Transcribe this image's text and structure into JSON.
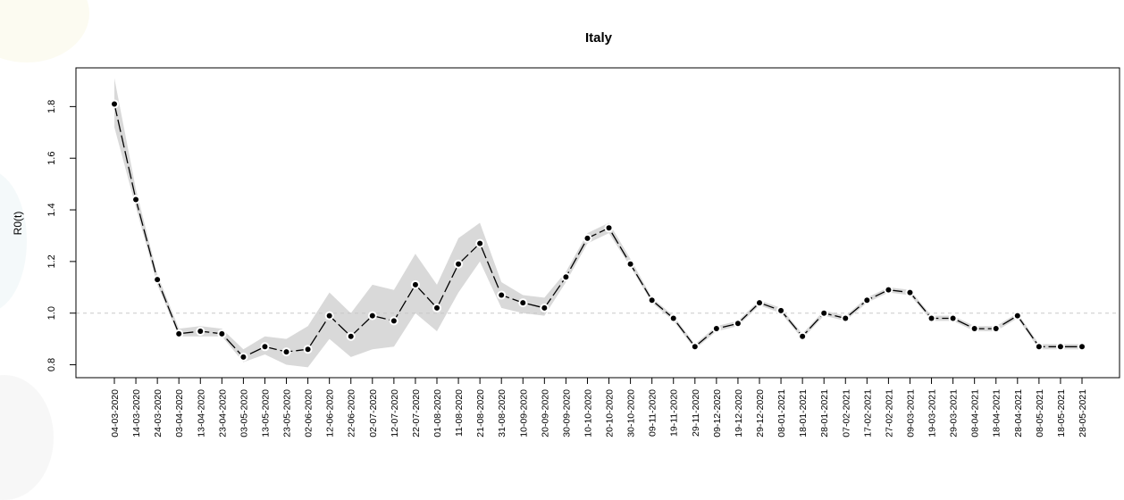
{
  "chart_data": {
    "type": "line",
    "title": "Italy",
    "xlabel": "",
    "ylabel": "R0(t)",
    "ylim": [
      0.75,
      1.95
    ],
    "yticks": [
      0.8,
      1.0,
      1.2,
      1.4,
      1.6,
      1.8
    ],
    "reference_line": 1.0,
    "grid": false,
    "colors": {
      "line": "#000000",
      "band": "#d9d9d9",
      "reference": "#c8c8c8"
    },
    "categories": [
      "04-03-2020",
      "14-03-2020",
      "24-03-2020",
      "03-04-2020",
      "13-04-2020",
      "23-04-2020",
      "03-05-2020",
      "13-05-2020",
      "23-05-2020",
      "02-06-2020",
      "12-06-2020",
      "22-06-2020",
      "02-07-2020",
      "12-07-2020",
      "22-07-2020",
      "01-08-2020",
      "11-08-2020",
      "21-08-2020",
      "31-08-2020",
      "10-09-2020",
      "20-09-2020",
      "30-09-2020",
      "10-10-2020",
      "20-10-2020",
      "30-10-2020",
      "09-11-2020",
      "19-11-2020",
      "29-11-2020",
      "09-12-2020",
      "19-12-2020",
      "29-12-2020",
      "08-01-2021",
      "18-01-2021",
      "28-01-2021",
      "07-02-2021",
      "17-02-2021",
      "27-02-2021",
      "09-03-2021",
      "19-03-2021",
      "29-03-2021",
      "08-04-2021",
      "18-04-2021",
      "28-04-2021",
      "08-05-2021",
      "18-05-2021",
      "28-05-2021"
    ],
    "values": [
      1.81,
      1.44,
      1.13,
      0.92,
      0.93,
      0.92,
      0.83,
      0.87,
      0.85,
      0.86,
      0.99,
      0.91,
      0.99,
      0.97,
      1.11,
      1.02,
      1.19,
      1.27,
      1.07,
      1.04,
      1.02,
      1.14,
      1.29,
      1.33,
      1.19,
      1.05,
      0.98,
      0.87,
      0.94,
      0.96,
      1.04,
      1.01,
      0.91,
      1.0,
      0.98,
      1.05,
      1.09,
      1.08,
      0.98,
      0.98,
      0.94,
      0.94,
      0.99,
      0.87,
      0.87,
      0.87
    ],
    "lower": [
      1.72,
      1.41,
      1.11,
      0.91,
      0.91,
      0.91,
      0.81,
      0.84,
      0.8,
      0.79,
      0.9,
      0.83,
      0.86,
      0.87,
      1.0,
      0.93,
      1.08,
      1.2,
      1.02,
      1.0,
      0.99,
      1.12,
      1.27,
      1.31,
      1.18,
      1.04,
      0.97,
      0.86,
      0.93,
      0.95,
      1.03,
      1.0,
      0.9,
      0.99,
      0.97,
      1.04,
      1.08,
      1.07,
      0.97,
      0.97,
      0.93,
      0.93,
      0.98,
      0.86,
      0.86,
      0.86
    ],
    "upper": [
      1.91,
      1.48,
      1.15,
      0.94,
      0.95,
      0.94,
      0.86,
      0.91,
      0.9,
      0.95,
      1.08,
      1.0,
      1.11,
      1.09,
      1.23,
      1.11,
      1.29,
      1.35,
      1.12,
      1.07,
      1.06,
      1.16,
      1.31,
      1.35,
      1.21,
      1.06,
      0.99,
      0.88,
      0.95,
      0.97,
      1.05,
      1.02,
      0.92,
      1.01,
      0.99,
      1.06,
      1.1,
      1.09,
      0.99,
      0.99,
      0.95,
      0.95,
      1.0,
      0.88,
      0.88,
      0.88
    ]
  }
}
